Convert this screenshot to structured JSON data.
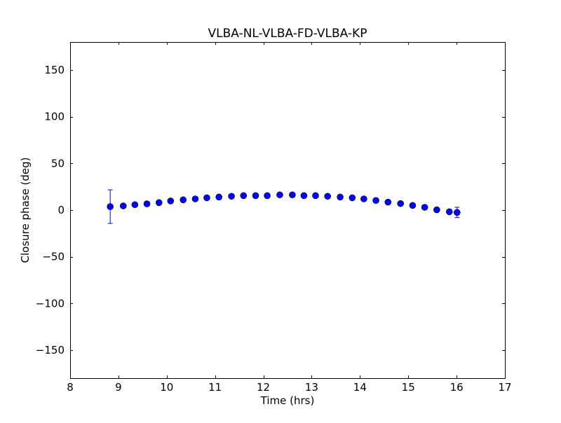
{
  "chart_data": {
    "type": "scatter",
    "title": "VLBA-NL-VLBA-FD-VLBA-KP",
    "xlabel": "Time (hrs)",
    "ylabel": "Closure phase (deg)",
    "xlim": [
      8,
      17
    ],
    "ylim": [
      -180,
      180
    ],
    "xticks": [
      8,
      9,
      10,
      11,
      12,
      13,
      14,
      15,
      16,
      17
    ],
    "yticks": [
      -150,
      -100,
      -50,
      0,
      50,
      100,
      150
    ],
    "ytick_labels": [
      "−150",
      "−100",
      "−50",
      "0",
      "50",
      "100",
      "150"
    ],
    "grid": false,
    "marker_color": "#0000ff",
    "series": [
      {
        "name": "closure phase",
        "x": [
          8.83,
          9.1,
          9.34,
          9.59,
          9.84,
          10.08,
          10.34,
          10.59,
          10.83,
          11.08,
          11.34,
          11.59,
          11.84,
          12.08,
          12.34,
          12.6,
          12.84,
          13.08,
          13.33,
          13.59,
          13.84,
          14.08,
          14.33,
          14.58,
          14.84,
          15.09,
          15.34,
          15.59,
          15.85,
          16.01
        ],
        "y": [
          3.7,
          4.5,
          5.8,
          6.7,
          8.0,
          9.8,
          11.0,
          12.0,
          13.2,
          14.0,
          14.8,
          15.5,
          15.5,
          15.5,
          16.3,
          16.3,
          15.5,
          15.5,
          14.8,
          14.0,
          13.2,
          12.0,
          10.3,
          8.5,
          7.0,
          5.0,
          3.0,
          0.3,
          -1.8,
          -2.5
        ],
        "yerr": [
          18,
          2,
          1,
          1,
          1,
          1,
          1,
          1,
          1,
          1,
          1,
          1,
          1,
          1,
          1,
          1,
          1,
          1,
          1,
          1,
          1,
          1,
          1,
          1,
          1,
          1,
          1,
          1,
          1,
          5.5
        ]
      }
    ]
  }
}
